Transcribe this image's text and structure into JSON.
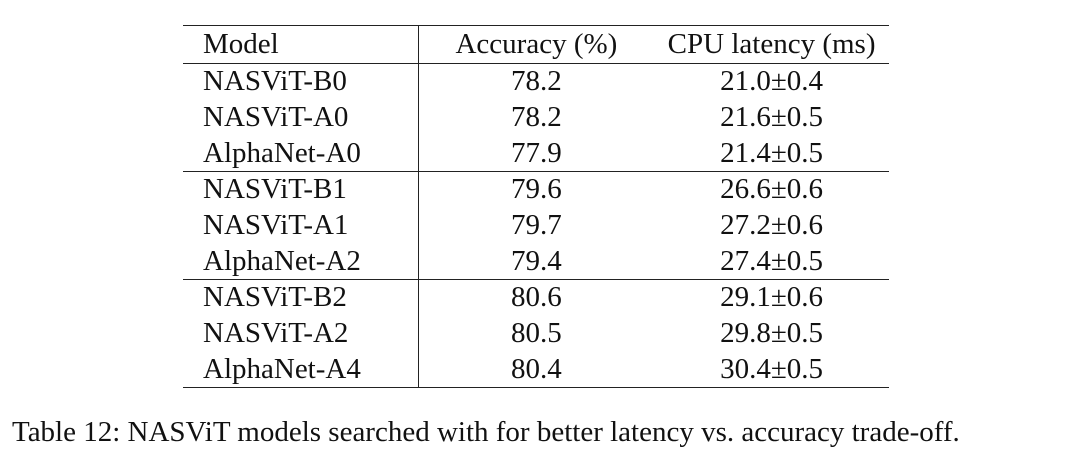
{
  "table": {
    "headers": {
      "model": "Model",
      "accuracy": "Accuracy (%)",
      "latency": "CPU latency (ms)"
    },
    "rows": [
      {
        "model": "NASViT-B0",
        "accuracy": "78.2",
        "latency": "21.0±0.4"
      },
      {
        "model": "NASViT-A0",
        "accuracy": "78.2",
        "latency": "21.6±0.5"
      },
      {
        "model": "AlphaNet-A0",
        "accuracy": "77.9",
        "latency": "21.4±0.5"
      },
      {
        "model": "NASViT-B1",
        "accuracy": "79.6",
        "latency": "26.6±0.6"
      },
      {
        "model": "NASViT-A1",
        "accuracy": "79.7",
        "latency": "27.2±0.6"
      },
      {
        "model": "AlphaNet-A2",
        "accuracy": "79.4",
        "latency": "27.4±0.5"
      },
      {
        "model": "NASViT-B2",
        "accuracy": "80.6",
        "latency": "29.1±0.6"
      },
      {
        "model": "NASViT-A2",
        "accuracy": "80.5",
        "latency": "29.8±0.5"
      },
      {
        "model": "AlphaNet-A4",
        "accuracy": "80.4",
        "latency": "30.4±0.5"
      }
    ]
  },
  "caption": "Table 12: NASViT models searched with for better latency vs. accuracy trade-off."
}
